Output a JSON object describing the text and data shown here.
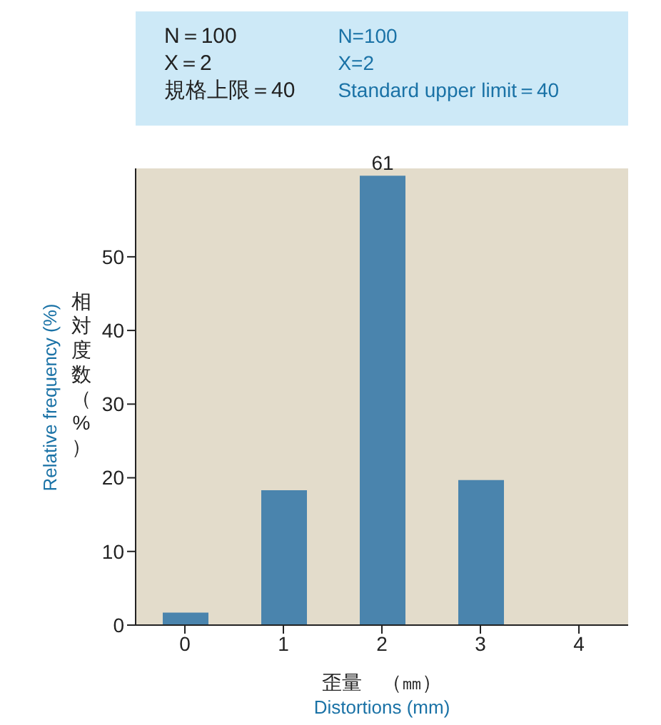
{
  "chart_data": {
    "type": "bar",
    "title": "N＝100\nX＝2\n規格上限＝40",
    "subtitle": "N=100\nX=2\nStandard upper limit＝40",
    "xlabel": "歪量　（㎜）",
    "ylabel": "相対度数（%）",
    "annotations": [
      "Relative frequency  (%)",
      "Distortions  (mm)"
    ],
    "categories": [
      "0",
      "1",
      "2",
      "3",
      "4"
    ],
    "values": [
      1.7,
      18.3,
      61,
      19.7,
      0
    ],
    "value_labels": [
      null,
      null,
      "61",
      null,
      null
    ],
    "color": "#4a84ad",
    "ylim": [
      0,
      62
    ],
    "yticks": [
      0,
      10,
      20,
      30,
      40,
      50
    ]
  }
}
